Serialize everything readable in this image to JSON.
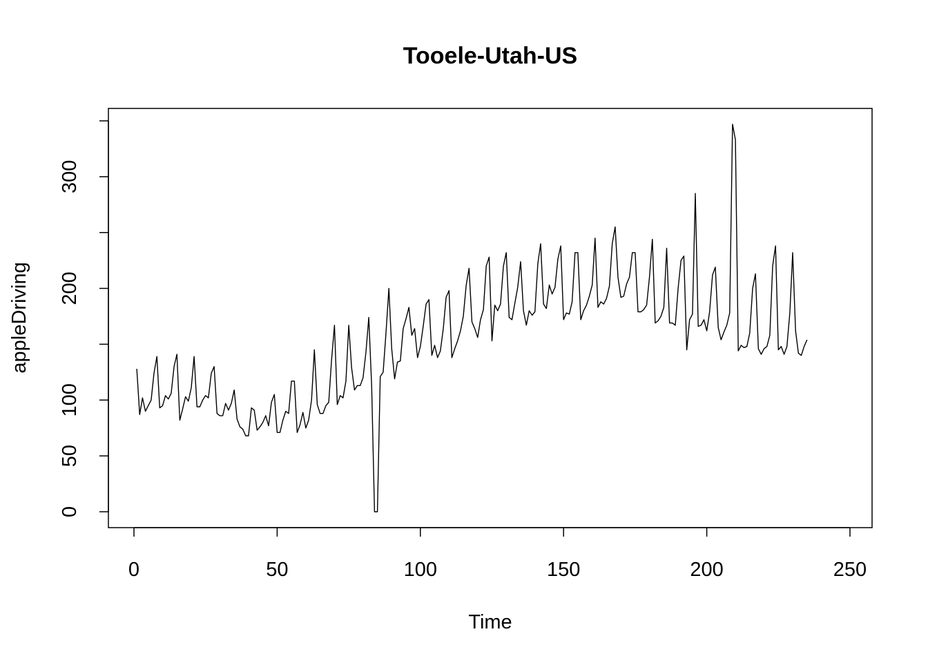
{
  "chart_data": {
    "type": "line",
    "title": "Tooele-Utah-US",
    "xlabel": "Time",
    "ylabel": "appleDriving",
    "xlim": [
      1,
      248
    ],
    "ylim": [
      0,
      350
    ],
    "x_ticks": [
      0,
      50,
      100,
      150,
      200,
      250
    ],
    "x_tick_labels": [
      "0",
      "50",
      "100",
      "150",
      "200",
      "250"
    ],
    "y_ticks": [
      0,
      50,
      100,
      200,
      300
    ],
    "y_tick_labels": [
      "0",
      "50",
      "100",
      "200",
      "300"
    ],
    "y_ticks_unlabeled": [
      150,
      250,
      350
    ],
    "grid": false,
    "line_color": "#000000",
    "series": [
      {
        "values": [
          128,
          87,
          102,
          90,
          95,
          100,
          124,
          139,
          93,
          95,
          104,
          101,
          106,
          130,
          141,
          82,
          92,
          103,
          99,
          111,
          139,
          94,
          94,
          100,
          104,
          102,
          124,
          130,
          88,
          86,
          86,
          97,
          91,
          97,
          109,
          83,
          76,
          74,
          68,
          68,
          93,
          91,
          73,
          76,
          80,
          86,
          77,
          98,
          105,
          71,
          71,
          82,
          90,
          88,
          117,
          117,
          71,
          78,
          89,
          75,
          82,
          100,
          145,
          96,
          88,
          88,
          95,
          98,
          136,
          167,
          96,
          104,
          102,
          117,
          167,
          129,
          109,
          113,
          113,
          120,
          143,
          174,
          112,
          0,
          0,
          121,
          125,
          160,
          200,
          146,
          119,
          134,
          135,
          164,
          173,
          183,
          158,
          164,
          138,
          148,
          166,
          186,
          190,
          140,
          149,
          138,
          144,
          164,
          192,
          198,
          138,
          146,
          153,
          162,
          175,
          203,
          218,
          170,
          164,
          156,
          172,
          181,
          220,
          228,
          153,
          185,
          180,
          186,
          220,
          232,
          174,
          172,
          187,
          201,
          224,
          180,
          167,
          180,
          176,
          179,
          222,
          240,
          186,
          182,
          203,
          195,
          201,
          226,
          238,
          172,
          178,
          177,
          188,
          232,
          232,
          172,
          180,
          185,
          193,
          203,
          245,
          183,
          188,
          186,
          191,
          202,
          240,
          255,
          210,
          192,
          193,
          204,
          210,
          232,
          232,
          179,
          179,
          181,
          185,
          210,
          244,
          169,
          171,
          175,
          183,
          236,
          169,
          169,
          167,
          200,
          225,
          229,
          145,
          172,
          177,
          285,
          166,
          167,
          172,
          162,
          179,
          212,
          219,
          165,
          154,
          161,
          167,
          178,
          347,
          333,
          144,
          149,
          147,
          148,
          160,
          200,
          213,
          146,
          141,
          146,
          148,
          158,
          220,
          238,
          145,
          148,
          141,
          148,
          178,
          232,
          162,
          142,
          140,
          148,
          154
        ]
      }
    ]
  }
}
